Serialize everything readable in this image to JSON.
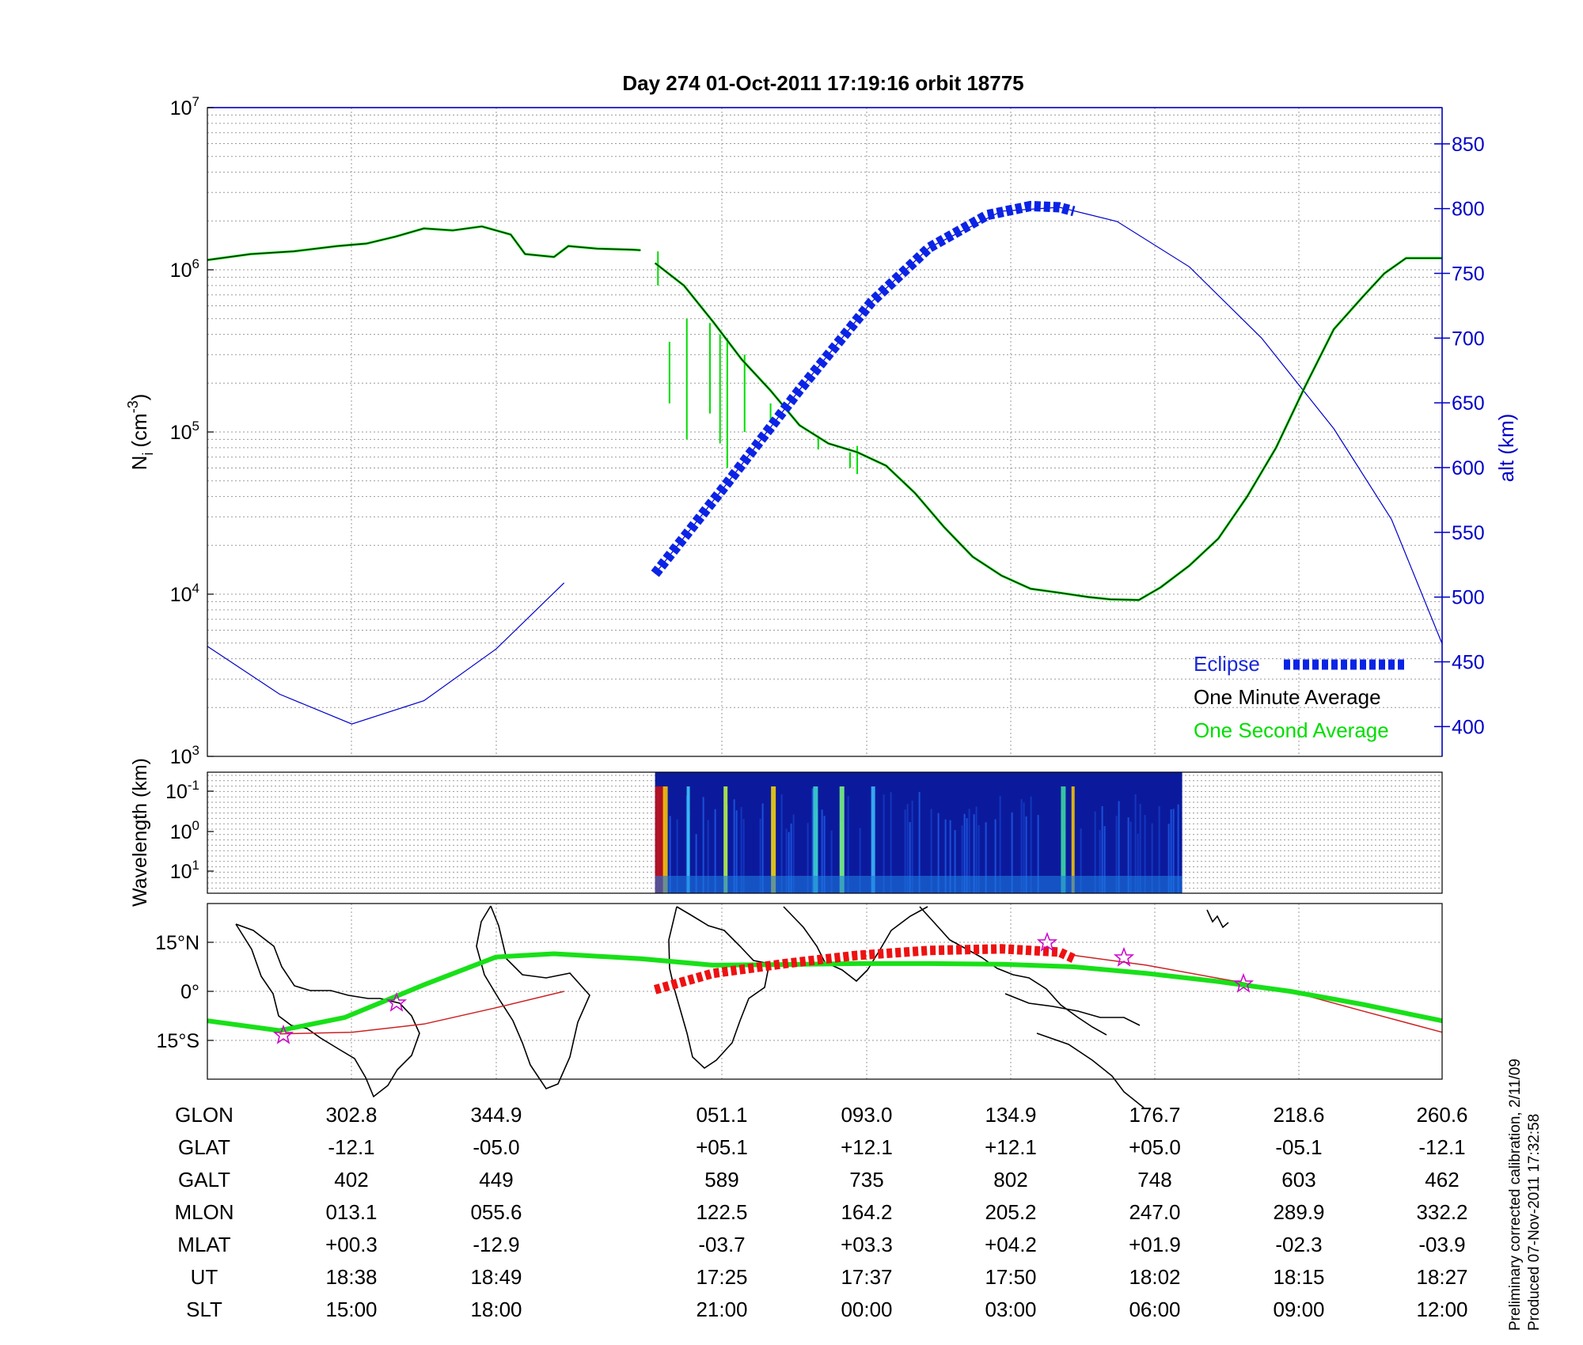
{
  "title": "Day 274  01-Oct-2011 17:19:16   orbit 18775",
  "colors": {
    "axis": "#000000",
    "alt_axis": "#0000c8",
    "one_minute": "#1a5c1a",
    "one_second": "#00dd00",
    "eclipse": "#0a23e6",
    "track_line": "#18e018",
    "track_eclipse": "#ee1111",
    "ground_track": "#cc2222",
    "spectrogram_bg": "#0b1a9c"
  },
  "chart_data": [
    {
      "type": "line",
      "panel": "ion density and altitude",
      "ylabel": "N_i (cm^-3)",
      "ylabel_main": "N",
      "ylabel_sub": "i",
      "ylabel_unit": "(cm",
      "ylabel_exp": "-3",
      "ylabel_close": ")",
      "yscale": "log",
      "ylim": [
        1000,
        10000000
      ],
      "yticks": [
        {
          "base": "10",
          "exp": "3",
          "value": 1000
        },
        {
          "base": "10",
          "exp": "4",
          "value": 10000
        },
        {
          "base": "10",
          "exp": "5",
          "value": 100000
        },
        {
          "base": "10",
          "exp": "6",
          "value": 1000000
        },
        {
          "base": "10",
          "exp": "7",
          "value": 10000000
        }
      ],
      "y2label": "alt (km)",
      "y2lim": [
        377,
        878
      ],
      "y2ticks": [
        "400",
        "450",
        "500",
        "550",
        "600",
        "650",
        "700",
        "750",
        "800",
        "850"
      ],
      "xlim": [
        0,
        8.55
      ],
      "grid": true,
      "legend": {
        "position": "bottom-right",
        "entries": [
          {
            "label": "Eclipse",
            "key": "eclipse"
          },
          {
            "label": "One Minute Average",
            "key": "one_minute"
          },
          {
            "label": "One Second Average",
            "key": "one_second"
          }
        ]
      },
      "series": [
        {
          "name": "One Minute Average",
          "color_key": "one_minute",
          "segments": [
            [
              [
                0,
                1150000
              ],
              [
                0.3,
                1250000
              ],
              [
                0.6,
                1300000
              ],
              [
                0.9,
                1400000
              ],
              [
                1.1,
                1450000
              ],
              [
                1.3,
                1600000
              ],
              [
                1.5,
                1800000
              ],
              [
                1.7,
                1750000
              ],
              [
                1.9,
                1850000
              ],
              [
                2.1,
                1650000
              ],
              [
                2.2,
                1250000
              ],
              [
                2.4,
                1200000
              ],
              [
                2.5,
                1400000
              ],
              [
                2.7,
                1350000
              ],
              [
                2.95,
                1330000
              ],
              [
                3.0,
                1320000
              ]
            ],
            [
              [
                3.1,
                1100000
              ],
              [
                3.3,
                800000
              ],
              [
                3.5,
                480000
              ],
              [
                3.7,
                280000
              ],
              [
                3.9,
                180000
              ],
              [
                4.1,
                110000
              ],
              [
                4.3,
                85000
              ],
              [
                4.5,
                75000
              ],
              [
                4.7,
                62000
              ],
              [
                4.9,
                42000
              ],
              [
                5.1,
                26000
              ],
              [
                5.3,
                17000
              ],
              [
                5.5,
                13000
              ],
              [
                5.7,
                10800
              ],
              [
                5.9,
                10200
              ],
              [
                6.1,
                9600
              ],
              [
                6.25,
                9300
              ],
              [
                6.45,
                9200
              ],
              [
                6.6,
                11000
              ],
              [
                6.8,
                15000
              ],
              [
                7.0,
                22000
              ],
              [
                7.2,
                40000
              ],
              [
                7.4,
                80000
              ],
              [
                7.6,
                190000
              ],
              [
                7.8,
                430000
              ],
              [
                8.0,
                680000
              ],
              [
                8.15,
                950000
              ],
              [
                8.3,
                1180000
              ],
              [
                8.55,
                1180000
              ]
            ]
          ]
        },
        {
          "name": "One Second Average",
          "color_key": "one_second",
          "spikes": [
            [
              3.12,
              1300000,
              800000
            ],
            [
              3.2,
              360000,
              150000
            ],
            [
              3.32,
              500000,
              90000
            ],
            [
              3.48,
              470000,
              130000
            ],
            [
              3.55,
              400000,
              85000
            ],
            [
              3.6,
              380000,
              60000
            ],
            [
              3.72,
              300000,
              100000
            ],
            [
              3.9,
              150000,
              115000
            ],
            [
              4.23,
              95000,
              78000
            ],
            [
              4.45,
              75000,
              60000
            ],
            [
              4.5,
              82000,
              55000
            ]
          ]
        },
        {
          "name": "altitude",
          "axis": "y2",
          "color_key": "alt_axis",
          "segments": [
            [
              [
                0,
                462
              ],
              [
                0.5,
                425
              ],
              [
                1.0,
                402
              ],
              [
                1.5,
                420
              ],
              [
                2.0,
                460
              ],
              [
                2.47,
                511
              ]
            ],
            [
              [
                3.1,
                518
              ],
              [
                3.6,
                588
              ],
              [
                4.1,
                660
              ],
              [
                4.6,
                728
              ],
              [
                5.0,
                770
              ],
              [
                5.5,
                798
              ],
              [
                5.9,
                801
              ],
              [
                6.3,
                790
              ],
              [
                6.8,
                755
              ],
              [
                7.3,
                700
              ],
              [
                7.8,
                630
              ],
              [
                8.2,
                560
              ],
              [
                8.55,
                464
              ]
            ]
          ]
        },
        {
          "name": "Eclipse",
          "axis": "y2",
          "color_key": "eclipse",
          "style": "dashed-thick",
          "points": [
            [
              3.1,
              518
            ],
            [
              3.6,
              588
            ],
            [
              4.1,
              660
            ],
            [
              4.6,
              728
            ],
            [
              5.0,
              770
            ],
            [
              5.4,
              795
            ],
            [
              5.7,
              802
            ],
            [
              5.9,
              801
            ],
            [
              6.0,
              798
            ]
          ]
        }
      ]
    },
    {
      "type": "heatmap",
      "panel": "wavelength spectrogram",
      "ylabel": "Wavelength (km)",
      "yticks": [
        {
          "base": "10",
          "exp": "-1"
        },
        {
          "base": "10",
          "exp": "0"
        },
        {
          "base": "10",
          "exp": "1"
        }
      ],
      "xlim": [
        3.1,
        6.75
      ]
    },
    {
      "type": "line",
      "panel": "orbit ground track map",
      "yticks": [
        "15°N",
        "0°",
        "15°S"
      ],
      "track_markers": [
        "star"
      ],
      "series": [
        {
          "name": "track",
          "color_key": "track_line",
          "points": [
            [
              0,
              -9
            ],
            [
              0.5,
              -12
            ],
            [
              0.95,
              -8
            ],
            [
              1.5,
              2
            ],
            [
              2.0,
              10.5
            ],
            [
              2.4,
              11.5
            ],
            [
              3.0,
              10
            ],
            [
              3.5,
              8
            ],
            [
              4.0,
              8.2
            ],
            [
              4.5,
              8.5
            ],
            [
              5.0,
              8.5
            ],
            [
              5.5,
              8.3
            ],
            [
              6.0,
              7.5
            ],
            [
              6.5,
              5.5
            ],
            [
              7.0,
              3
            ],
            [
              7.5,
              0
            ],
            [
              8.0,
              -4
            ],
            [
              8.55,
              -9
            ]
          ]
        },
        {
          "name": "eclipse track",
          "color_key": "track_eclipse",
          "points": [
            [
              3.1,
              0.5
            ],
            [
              3.5,
              5.5
            ],
            [
              4.0,
              8.5
            ],
            [
              4.5,
              11
            ],
            [
              5.0,
              12.5
            ],
            [
              5.5,
              13
            ],
            [
              5.9,
              12
            ],
            [
              6.0,
              10
            ]
          ]
        },
        {
          "name": "ground track",
          "color_key": "ground_track",
          "segments": [
            [
              [
                0.5,
                -13
              ],
              [
                1.0,
                -12.5
              ],
              [
                1.5,
                -10
              ],
              [
                2.0,
                -5
              ],
              [
                2.47,
                0
              ]
            ],
            [
              [
                6.0,
                11
              ],
              [
                6.5,
                8
              ],
              [
                7.0,
                4
              ],
              [
                7.5,
                0
              ],
              [
                8.0,
                -6
              ],
              [
                8.55,
                -12.5
              ]
            ]
          ]
        }
      ]
    }
  ],
  "table": {
    "rows": [
      {
        "label": "GLON",
        "values": [
          "302.8",
          "344.9",
          "051.1",
          "093.0",
          "134.9",
          "176.7",
          "218.6",
          "260.6"
        ]
      },
      {
        "label": "GLAT",
        "values": [
          "-12.1",
          "-05.0",
          "+05.1",
          "+12.1",
          "+12.1",
          "+05.0",
          "-05.1",
          "-12.1"
        ]
      },
      {
        "label": "GALT",
        "values": [
          "402",
          "449",
          "589",
          "735",
          "802",
          "748",
          "603",
          "462"
        ]
      },
      {
        "label": "MLON",
        "values": [
          "013.1",
          "055.6",
          "122.5",
          "164.2",
          "205.2",
          "247.0",
          "289.9",
          "332.2"
        ]
      },
      {
        "label": "MLAT",
        "values": [
          "+00.3",
          "-12.9",
          "-03.7",
          "+03.3",
          "+04.2",
          "+01.9",
          "-02.3",
          "-03.9"
        ]
      },
      {
        "label": "UT",
        "values": [
          "18:38",
          "18:49",
          "17:25",
          "17:37",
          "17:50",
          "18:02",
          "18:15",
          "18:27"
        ]
      },
      {
        "label": "SLT",
        "values": [
          "15:00",
          "18:00",
          "21:00",
          "00:00",
          "03:00",
          "06:00",
          "09:00",
          "12:00"
        ]
      }
    ]
  },
  "side_notes": {
    "calibration": "Preliminary corrected calibration, 2/11/09",
    "produced": "Produced 07-Nov-2011 17:32:58"
  }
}
